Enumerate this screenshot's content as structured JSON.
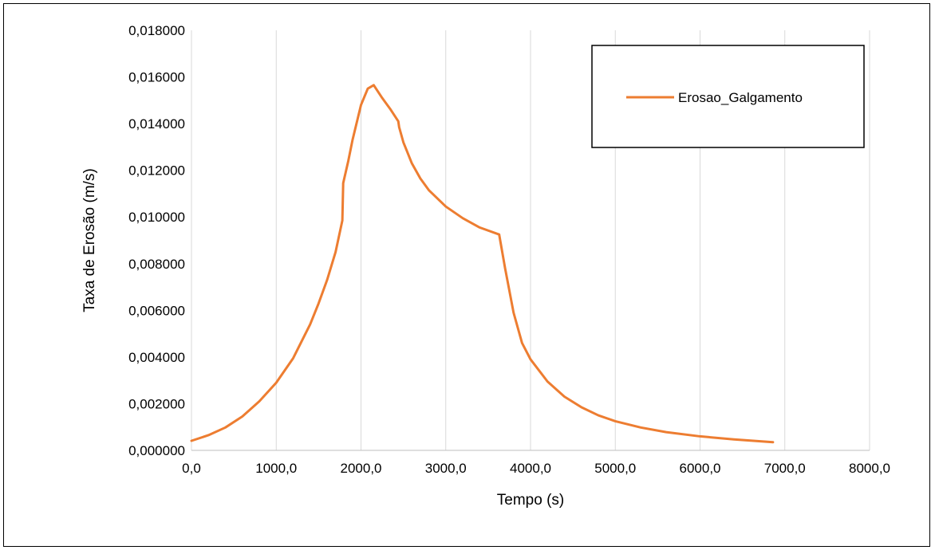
{
  "chart_data": {
    "type": "line",
    "title": "",
    "xlabel": "Tempo  (s)",
    "ylabel": "Taxa de Erosão (m/s)",
    "xlim": [
      0,
      8000
    ],
    "ylim": [
      0,
      0.018
    ],
    "x_ticks": [
      "0,0",
      "1000,0",
      "2000,0",
      "3000,0",
      "4000,0",
      "5000,0",
      "6000,0",
      "7000,0",
      "8000,0"
    ],
    "y_ticks": [
      "0,000000",
      "0,002000",
      "0,004000",
      "0,006000",
      "0,008000",
      "0,010000",
      "0,012000",
      "0,014000",
      "0,016000",
      "0,018000"
    ],
    "grid": "vertical",
    "legend": {
      "placement": "top-right"
    },
    "series": [
      {
        "name": "Erosao_Galgamento",
        "color": "#ed7d31",
        "points": [
          [
            0,
            0.00041
          ],
          [
            200,
            0.00065
          ],
          [
            400,
            0.00098
          ],
          [
            600,
            0.00145
          ],
          [
            800,
            0.0021
          ],
          [
            1000,
            0.0029
          ],
          [
            1200,
            0.00395
          ],
          [
            1400,
            0.0054
          ],
          [
            1500,
            0.0063
          ],
          [
            1600,
            0.0073
          ],
          [
            1700,
            0.0085
          ],
          [
            1780,
            0.00985
          ],
          [
            1790,
            0.01145
          ],
          [
            1850,
            0.0124
          ],
          [
            1900,
            0.0133
          ],
          [
            2000,
            0.0148
          ],
          [
            2080,
            0.0155
          ],
          [
            2150,
            0.01565
          ],
          [
            2250,
            0.0151
          ],
          [
            2350,
            0.0146
          ],
          [
            2440,
            0.0141
          ],
          [
            2450,
            0.01385
          ],
          [
            2500,
            0.0132
          ],
          [
            2600,
            0.0123
          ],
          [
            2700,
            0.01165
          ],
          [
            2800,
            0.01115
          ],
          [
            3000,
            0.01045
          ],
          [
            3200,
            0.00995
          ],
          [
            3400,
            0.00955
          ],
          [
            3630,
            0.00925
          ],
          [
            3700,
            0.0078
          ],
          [
            3800,
            0.0059
          ],
          [
            3900,
            0.0046
          ],
          [
            4000,
            0.0039
          ],
          [
            4200,
            0.00295
          ],
          [
            4400,
            0.0023
          ],
          [
            4600,
            0.00185
          ],
          [
            4800,
            0.0015
          ],
          [
            5000,
            0.00125
          ],
          [
            5300,
            0.00098
          ],
          [
            5600,
            0.00078
          ],
          [
            6000,
            0.0006
          ],
          [
            6400,
            0.00047
          ],
          [
            6860,
            0.00035
          ]
        ]
      }
    ]
  }
}
